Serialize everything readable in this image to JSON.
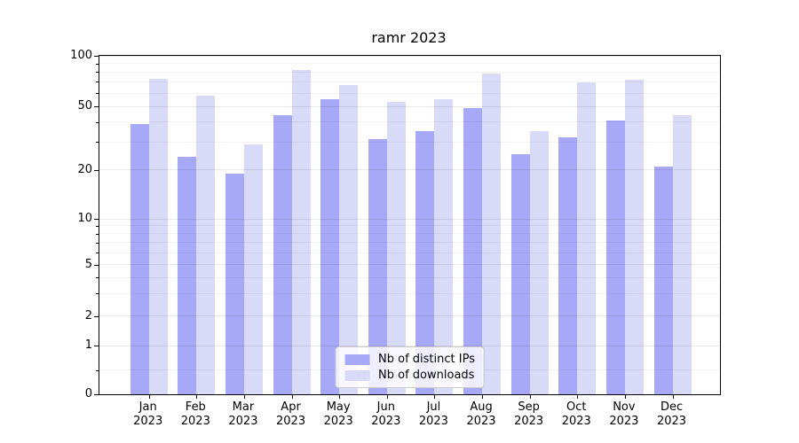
{
  "chart_data": {
    "type": "bar",
    "title": "ramr 2023",
    "categories": [
      "Jan 2023",
      "Feb 2023",
      "Mar 2023",
      "Apr 2023",
      "May 2023",
      "Jun 2023",
      "Jul 2023",
      "Aug 2023",
      "Sep 2023",
      "Oct 2023",
      "Nov 2023",
      "Dec 2023"
    ],
    "series": [
      {
        "name": "Nb of distinct IPs",
        "color": "#a8a8f8",
        "values": [
          39,
          24,
          19,
          44,
          55,
          31,
          35,
          49,
          25,
          32,
          41,
          21
        ]
      },
      {
        "name": "Nb of downloads",
        "color": "#d9d9f8",
        "values": [
          73,
          58,
          29,
          82,
          67,
          53,
          55,
          79,
          35,
          70,
          72,
          44
        ]
      }
    ],
    "xlabel": "",
    "ylabel": "",
    "ylim": [
      0,
      100
    ],
    "yticks": [
      0,
      1,
      2,
      5,
      10,
      20,
      50,
      100
    ],
    "minor_yticks": [
      0.5,
      3,
      4,
      6,
      7,
      8,
      9,
      30,
      40,
      60,
      70,
      80,
      90
    ],
    "y_anchor_fractions": [
      [
        0,
        0
      ],
      [
        1,
        0.1432
      ],
      [
        2,
        0.2312
      ],
      [
        5,
        0.3822
      ],
      [
        10,
        0.5183
      ],
      [
        20,
        0.6635
      ],
      [
        50,
        0.85
      ],
      [
        100,
        1
      ]
    ],
    "grid": "horizontal major+minor, on",
    "legend_position": "lower center",
    "bar_group_width": 0.8
  },
  "colors": {
    "series_dark": "#a8a8f8",
    "series_light": "#d9d9f8",
    "grid_major": "rgba(0,0,0,0.09)",
    "grid_minor": "rgba(0,0,0,0.045)",
    "axis_spine": "#000000",
    "legend_border": "#cccccc",
    "text": "#000000",
    "background": "#ffffff"
  }
}
